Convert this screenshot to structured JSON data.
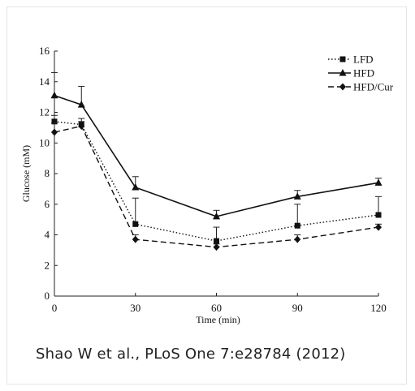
{
  "chart_data": {
    "type": "line",
    "title": "",
    "xlabel": "Time (min)",
    "ylabel": "Glucose (mM)",
    "xlim": [
      0,
      120
    ],
    "ylim": [
      0,
      16
    ],
    "x_ticks": [
      0,
      30,
      60,
      90,
      120
    ],
    "y_ticks": [
      0,
      2,
      4,
      6,
      8,
      10,
      12,
      14,
      16
    ],
    "x": [
      0,
      10,
      30,
      60,
      90,
      120
    ],
    "grid": false,
    "legend_position": "top-right",
    "series": [
      {
        "name": "LFD",
        "line": "dotted",
        "marker": "square",
        "values": [
          11.4,
          11.2,
          4.7,
          3.6,
          4.6,
          5.3
        ],
        "error_upper": [
          11.8,
          11.6,
          6.4,
          4.5,
          6.0,
          6.5
        ]
      },
      {
        "name": "HFD",
        "line": "solid",
        "marker": "triangle",
        "values": [
          13.1,
          12.5,
          7.1,
          5.2,
          6.5,
          7.4
        ],
        "error_upper": [
          14.6,
          13.7,
          7.8,
          5.6,
          6.9,
          7.7
        ]
      },
      {
        "name": "HFD/Cur",
        "line": "dashed",
        "marker": "diamond",
        "values": [
          10.7,
          11.1,
          3.7,
          3.2,
          3.7,
          4.5
        ],
        "error_upper": [
          11.3,
          11.4,
          4.0,
          3.4,
          4.0,
          4.7
        ]
      }
    ]
  },
  "caption": "Shao W et al., PLoS One 7:e28784 (2012)"
}
